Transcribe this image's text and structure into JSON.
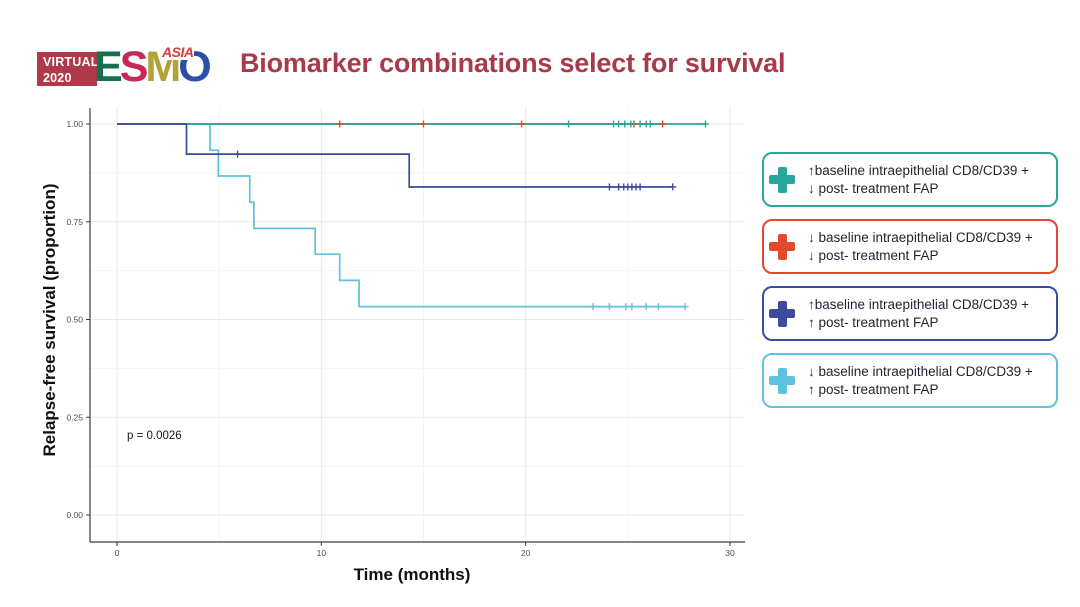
{
  "header": {
    "title": "Biomarker combinations select for survival",
    "title_color": "#a63b4b",
    "logo": {
      "virtual_line1": "VIRTUAL",
      "virtual_line2": "2020",
      "badge_bg": "#b23949",
      "letters": [
        {
          "ch": "E",
          "color": "#176f4e"
        },
        {
          "ch": "S",
          "color": "#c52a56"
        },
        {
          "ch": "M",
          "color": "#afa339"
        },
        {
          "ch": "O",
          "color": "#2b4fa5"
        }
      ],
      "asia": "ASIA",
      "asia_color": "#d83a3c"
    }
  },
  "chart_data": {
    "type": "line",
    "subtype": "kaplan-meier-step",
    "title": "",
    "xlabel": "Time (months)",
    "ylabel": "Relapse-free survival (proportion)",
    "annotation": "p = 0.0026",
    "xlim": [
      0,
      30.7
    ],
    "ylim": [
      0,
      1
    ],
    "xticks": [
      [
        0,
        "0"
      ],
      [
        10,
        "10"
      ],
      [
        20,
        "20"
      ],
      [
        30,
        "30"
      ]
    ],
    "yticks": [
      [
        1,
        "1.00"
      ],
      [
        0.75,
        "0.75"
      ],
      [
        0.5,
        "0.50"
      ],
      [
        0.25,
        "0.25"
      ],
      [
        0,
        "0.00"
      ]
    ],
    "xminor": [
      5,
      15,
      25
    ],
    "yminor": [
      0.125,
      0.375,
      0.625,
      0.875
    ],
    "grid": true,
    "styles": {
      "grid_major": "#e9e9e9",
      "grid_minor": "#f4f4f4",
      "axis_line": "#3c3c3c",
      "tick_text": "#4d4d4d"
    },
    "series": [
      {
        "name": "low-baseline-CD8CD39-low-FAP",
        "color": "#e0492e",
        "steps": [
          [
            0,
            1
          ],
          [
            26.7,
            1
          ]
        ],
        "censors": [
          [
            10.9,
            1
          ],
          [
            15.0,
            1
          ],
          [
            19.8,
            1
          ],
          [
            25.3,
            1
          ],
          [
            26.7,
            1
          ]
        ]
      },
      {
        "name": "low-baseline-CD8CD39-high-FAP",
        "color": "#5fc3e0",
        "steps": [
          [
            0,
            1
          ],
          [
            4.55,
            1
          ],
          [
            4.55,
            0.933
          ],
          [
            4.96,
            0.933
          ],
          [
            4.96,
            0.867
          ],
          [
            6.5,
            0.867
          ],
          [
            6.5,
            0.8
          ],
          [
            6.7,
            0.8
          ],
          [
            6.7,
            0.733
          ],
          [
            9.7,
            0.733
          ],
          [
            9.7,
            0.667
          ],
          [
            10.9,
            0.667
          ],
          [
            10.9,
            0.6
          ],
          [
            11.85,
            0.6
          ],
          [
            11.85,
            0.533
          ],
          [
            27.8,
            0.533
          ]
        ],
        "censors": [
          [
            23.3,
            0.533
          ],
          [
            24.1,
            0.533
          ],
          [
            24.9,
            0.533
          ],
          [
            25.2,
            0.533
          ],
          [
            25.9,
            0.533
          ],
          [
            26.5,
            0.533
          ],
          [
            27.8,
            0.533
          ]
        ]
      },
      {
        "name": "high-baseline-CD8CD39-low-FAP",
        "color": "#2aa79b",
        "steps": [
          [
            0,
            1
          ],
          [
            28.8,
            1
          ]
        ],
        "censors": [
          [
            22.1,
            1
          ],
          [
            24.3,
            1
          ],
          [
            24.55,
            1
          ],
          [
            24.85,
            1
          ],
          [
            25.15,
            1
          ],
          [
            25.6,
            1
          ],
          [
            25.9,
            1
          ],
          [
            26.1,
            1
          ],
          [
            28.8,
            1
          ]
        ]
      },
      {
        "name": "high-baseline-CD8CD39-high-FAP",
        "color": "#3c4b9d",
        "steps": [
          [
            0,
            1
          ],
          [
            3.4,
            1
          ],
          [
            3.4,
            0.923
          ],
          [
            14.3,
            0.923
          ],
          [
            14.3,
            0.839
          ],
          [
            27.2,
            0.839
          ]
        ],
        "censors": [
          [
            5.9,
            0.923
          ],
          [
            24.1,
            0.839
          ],
          [
            24.55,
            0.839
          ],
          [
            24.8,
            0.839
          ],
          [
            25.0,
            0.839
          ],
          [
            25.2,
            0.839
          ],
          [
            25.4,
            0.839
          ],
          [
            25.6,
            0.839
          ],
          [
            27.2,
            0.839
          ]
        ]
      }
    ],
    "legend_position": "right"
  },
  "legend": {
    "items": [
      {
        "line1": "↑baseline intraepithelial CD8/CD39 +",
        "line2": "↓ post- treatment FAP",
        "color": "#2aa79b"
      },
      {
        "line1": "↓ baseline intraepithelial CD8/CD39 +",
        "line2": "↓ post- treatment FAP",
        "color": "#e0492e"
      },
      {
        "line1": "↑baseline intraepithelial CD8/CD39 +",
        "line2": "↑ post- treatment FAP",
        "color": "#3c4b9d"
      },
      {
        "line1": "↓ baseline intraepithelial CD8/CD39 +",
        "line2": "↑ post- treatment FAP",
        "color": "#5fc3e0"
      }
    ]
  }
}
